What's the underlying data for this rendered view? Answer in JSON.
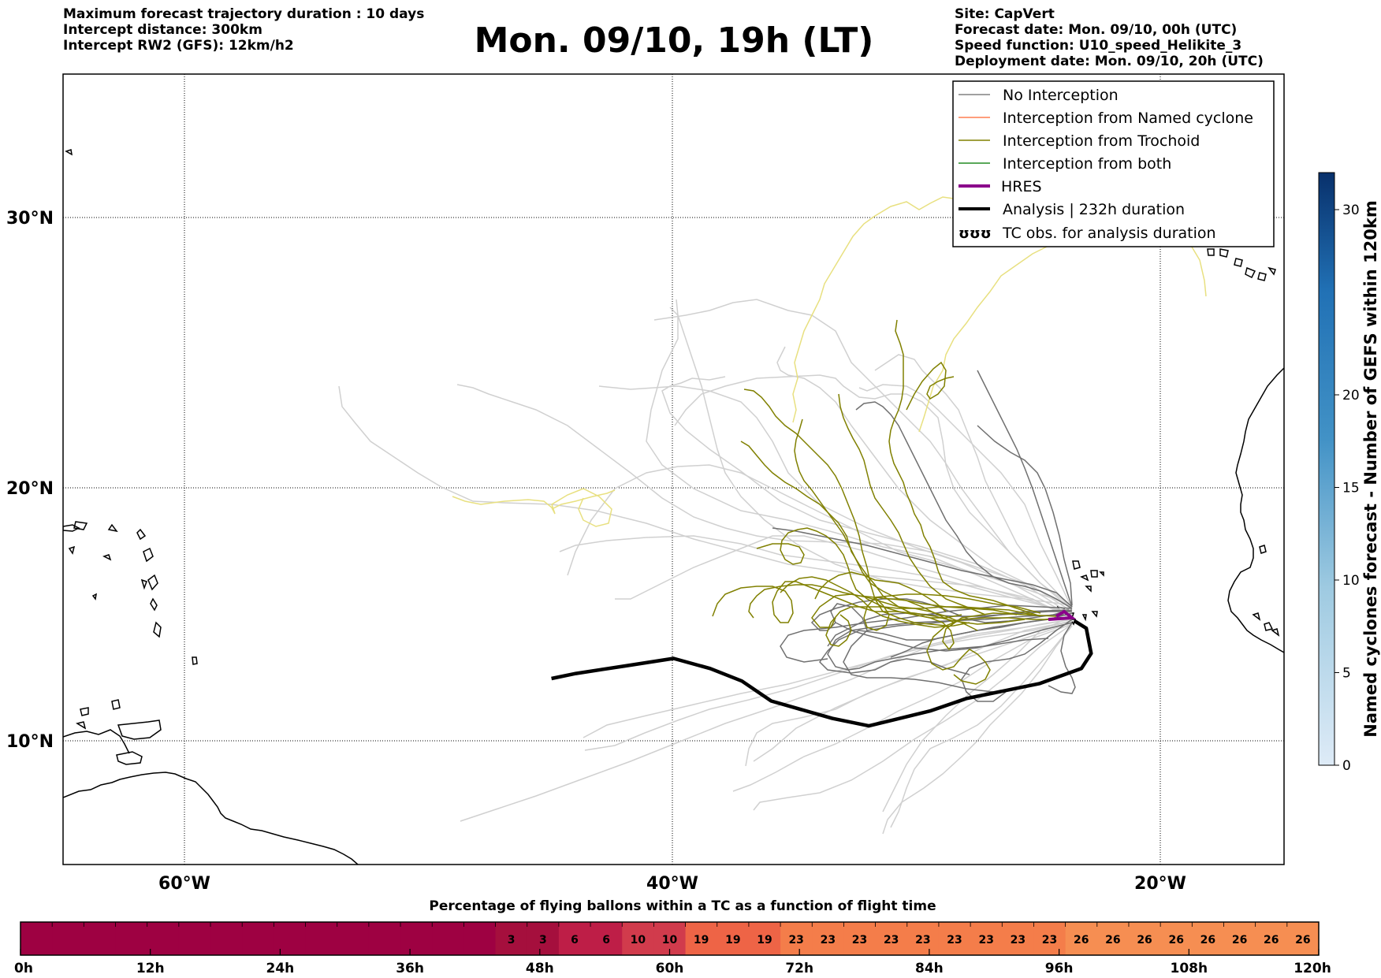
{
  "header": {
    "left_lines": [
      "Maximum forecast trajectory duration : 10 days",
      "Intercept distance: 300km",
      "Intercept RW2 (GFS):  12km/h2"
    ],
    "title": "Mon. 09/10, 19h (LT)",
    "right_lines": [
      "Site: CapVert",
      "Forecast date: Mon. 09/10, 00h (UTC)",
      "Speed function: U10_speed_Helikite_3",
      "Deployment date: Mon. 09/10, 20h (UTC)"
    ]
  },
  "map": {
    "lat_labels": [
      "30°N",
      "20°N",
      "10°N"
    ],
    "lon_labels": [
      "60°W",
      "40°W",
      "20°W"
    ],
    "lat_range": [
      5.4,
      34.7
    ],
    "lon_range": [
      -65,
      -15
    ]
  },
  "legend": {
    "items": [
      {
        "label": "No Interception",
        "color": "#808080",
        "style": "thin"
      },
      {
        "label": "Interception from Named cyclone",
        "color": "#ff7f50",
        "style": "thin"
      },
      {
        "label": "Interception from Trochoid",
        "color": "#808000",
        "style": "thin"
      },
      {
        "label": "Interception from both",
        "color": "#228b22",
        "style": "thin"
      },
      {
        "label": "HRES",
        "color": "#8b008b",
        "style": "thick"
      },
      {
        "label": "Analysis | 232h duration",
        "color": "#000000",
        "style": "thick"
      },
      {
        "label": "TC obs. for analysis duration",
        "color": "#000000",
        "style": "symbol"
      }
    ]
  },
  "colorbar": {
    "label": "Named cyclones forecast - Number of GEFS within 120km",
    "ticks": [
      "0",
      "5",
      "10",
      "15",
      "20",
      "30"
    ],
    "range": [
      0,
      32
    ]
  },
  "timebar": {
    "title": "Percentage of flying ballons within a TC as a function of flight time",
    "values": [
      0,
      0,
      0,
      0,
      0,
      0,
      0,
      0,
      0,
      0,
      0,
      0,
      0,
      0,
      0,
      3,
      3,
      6,
      6,
      10,
      10,
      19,
      19,
      19,
      23,
      23,
      23,
      23,
      23,
      23,
      23,
      23,
      23,
      26,
      26,
      26,
      26,
      26,
      26,
      26,
      26
    ],
    "tick_labels": [
      "0h",
      "12h",
      "24h",
      "36h",
      "48h",
      "60h",
      "72h",
      "84h",
      "96h",
      "108h",
      "120h"
    ]
  },
  "chart_data": {
    "type": "line",
    "xlabel": "",
    "ylabel": "",
    "series": [
      {
        "name": "Analysis | 232h duration",
        "values": [
          [
            -23.6,
            14.8
          ],
          [
            -23.1,
            14.5
          ],
          [
            -22.9,
            13.5
          ],
          [
            -23.3,
            12.9
          ],
          [
            -25,
            12.3
          ],
          [
            -28,
            11.7
          ],
          [
            -29.5,
            11.2
          ],
          [
            -32,
            10.6
          ],
          [
            -33.5,
            10.9
          ],
          [
            -36,
            11.6
          ],
          [
            -37.2,
            12.4
          ],
          [
            -38.5,
            12.9
          ],
          [
            -40,
            13.3
          ],
          [
            -42,
            13.0
          ],
          [
            -44,
            12.7
          ],
          [
            -45,
            12.5
          ]
        ]
      }
    ]
  }
}
